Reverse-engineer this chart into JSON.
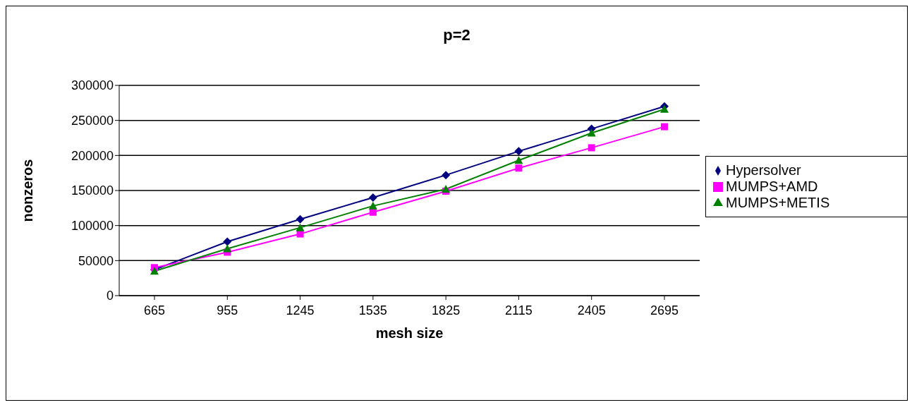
{
  "chart_data": {
    "type": "line",
    "title": "p=2",
    "xlabel": "mesh size",
    "ylabel": "nonzeros",
    "categories": [
      "665",
      "955",
      "1245",
      "1535",
      "1825",
      "2115",
      "2405",
      "2695"
    ],
    "series": [
      {
        "name": "Hypersolver",
        "color": "#000080",
        "marker": "diamond",
        "values": [
          37000,
          77000,
          109000,
          140000,
          172000,
          206000,
          238000,
          270000
        ]
      },
      {
        "name": "MUMPS+AMD",
        "color": "#ff00ff",
        "marker": "square",
        "values": [
          40000,
          62000,
          88000,
          119000,
          149000,
          182000,
          211000,
          241000
        ]
      },
      {
        "name": "MUMPS+METIS",
        "color": "#008000",
        "marker": "triangle",
        "values": [
          35000,
          67000,
          97000,
          128000,
          152000,
          193000,
          232000,
          266000
        ]
      }
    ],
    "ylim": [
      0,
      300000
    ],
    "yticks": [
      0,
      50000,
      100000,
      150000,
      200000,
      250000,
      300000
    ],
    "grid": "y",
    "legend": "right"
  }
}
